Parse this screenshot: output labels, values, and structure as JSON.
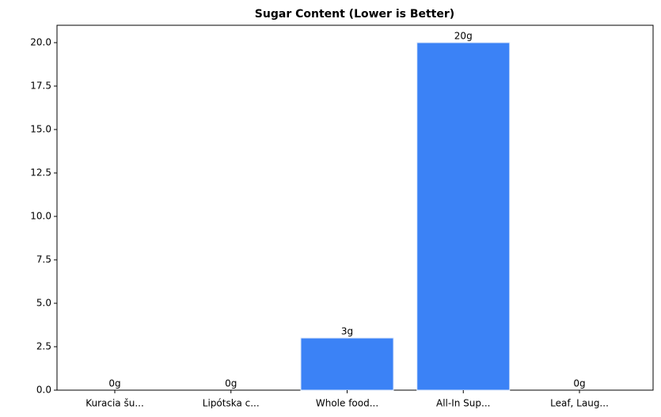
{
  "chart_data": {
    "type": "bar",
    "title": "Sugar Content (Lower is Better)",
    "categories": [
      "Kuracia šu...",
      "Lipótska c...",
      "Whole food...",
      "All-In Sup...",
      "Leaf, Laug..."
    ],
    "values": [
      0,
      0,
      3,
      20,
      0
    ],
    "value_labels": [
      "0g",
      "0g",
      "3g",
      "20g",
      "0g"
    ],
    "color": "#3b82f6",
    "ylim": [
      0,
      21
    ],
    "yticks": [
      {
        "value": 0,
        "label": "0.0"
      },
      {
        "value": 2.5,
        "label": "2.5"
      },
      {
        "value": 5,
        "label": "5.0"
      },
      {
        "value": 7.5,
        "label": "7.5"
      },
      {
        "value": 10,
        "label": "10.0"
      },
      {
        "value": 12.5,
        "label": "12.5"
      },
      {
        "value": 15,
        "label": "15.0"
      },
      {
        "value": 17.5,
        "label": "17.5"
      },
      {
        "value": 20,
        "label": "20.0"
      }
    ]
  }
}
